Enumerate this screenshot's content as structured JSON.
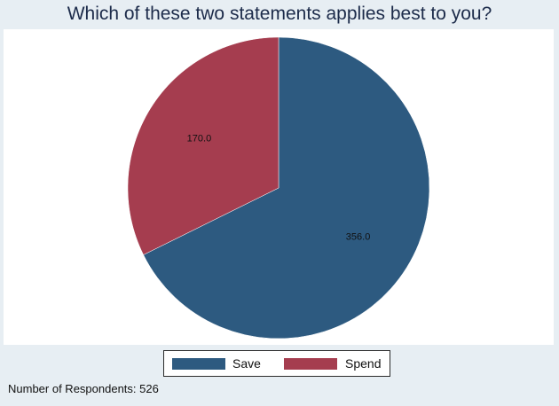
{
  "chart_data": {
    "type": "pie",
    "title": "Which of these two statements applies best to you?",
    "slices": [
      {
        "name": "Save",
        "value": 356.0,
        "label": "356.0",
        "color": "#2d5a80"
      },
      {
        "name": "Spend",
        "value": 170.0,
        "label": "170.0",
        "color": "#a53d4f"
      }
    ],
    "legend": {
      "position": "bottom",
      "entries": [
        "Save",
        "Spend"
      ]
    }
  },
  "note": "Number of Respondents: 526"
}
